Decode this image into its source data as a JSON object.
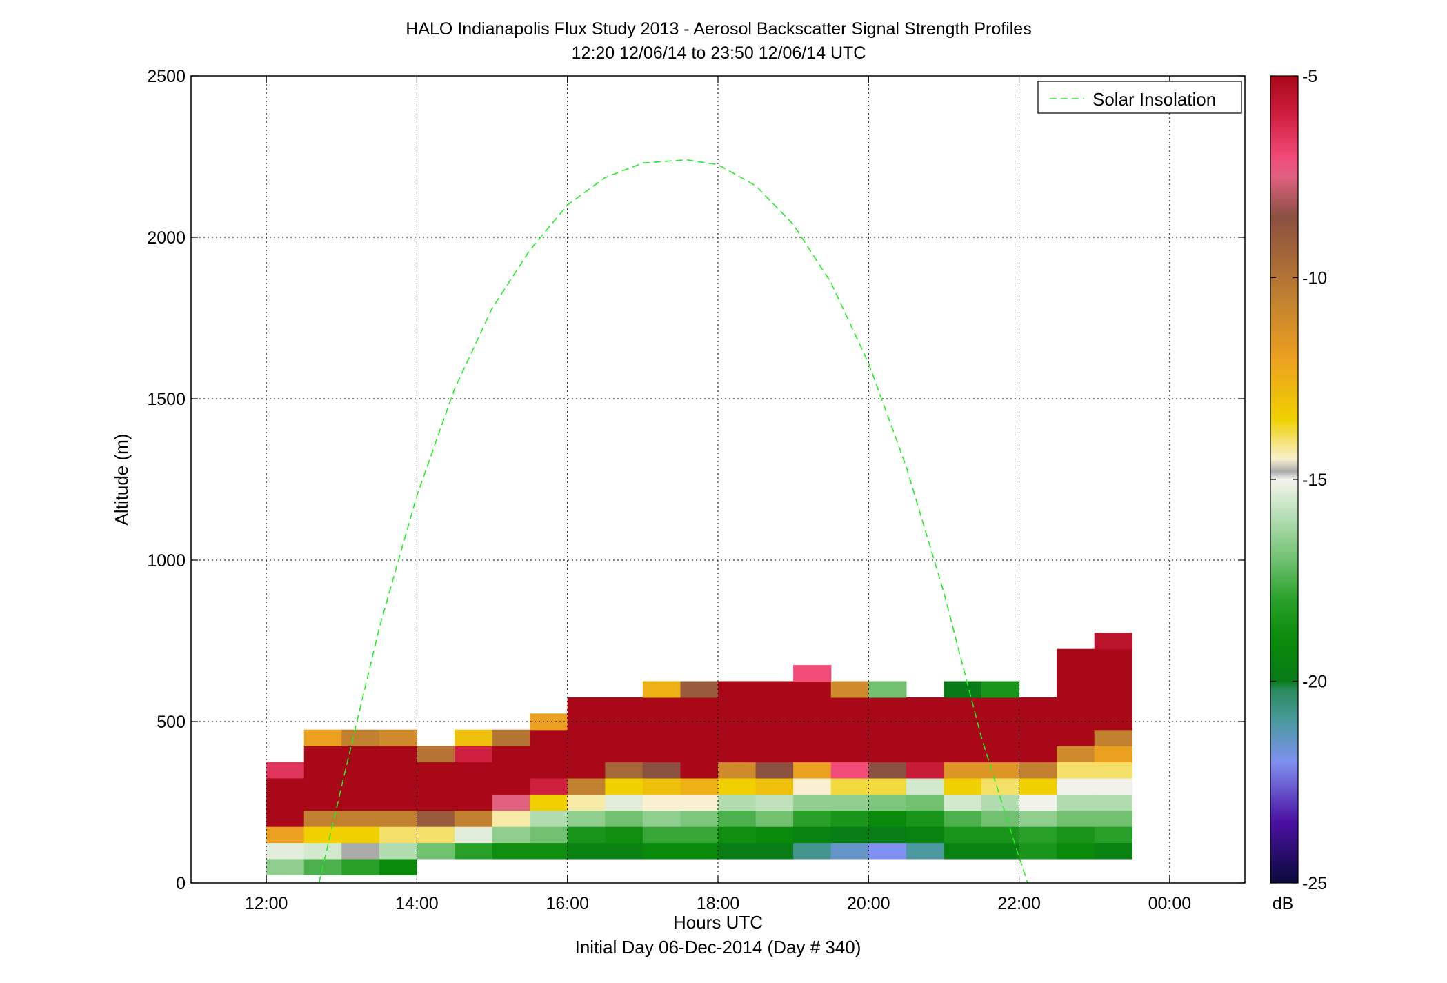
{
  "title": "HALO Indianapolis Flux Study 2013 - Aerosol Backscatter Signal Strength Profiles",
  "subtitle": "12:20 12/06/14 to 23:50 12/06/14  UTC",
  "chart_data": {
    "type": "heatmap",
    "title": "HALO Indianapolis Flux Study 2013 - Aerosol Backscatter Signal Strength Profiles",
    "subtitle": "12:20 12/06/14 to 23:50 12/06/14  UTC",
    "xlabel": "Hours UTC",
    "xlabel2": "Initial Day 06-Dec-2014 (Day # 340)",
    "ylabel": "Altitude (m)",
    "xlim": [
      11.0,
      25.0
    ],
    "ylim": [
      0,
      2500
    ],
    "x_ticks": [
      12,
      14,
      16,
      18,
      20,
      22,
      24
    ],
    "x_tick_labels": [
      "12:00",
      "14:00",
      "16:00",
      "18:00",
      "20:00",
      "22:00",
      "00:00"
    ],
    "y_ticks": [
      0,
      500,
      1000,
      1500,
      2000,
      2500
    ],
    "y_tick_labels": [
      "0",
      "500",
      "1000",
      "1500",
      "2000",
      "2500"
    ],
    "grid": true,
    "colorbar": {
      "label": "dB",
      "range": [
        -25,
        -5
      ],
      "tick_values": [
        -5,
        -10,
        -15,
        -20,
        -25
      ],
      "tick_labels": [
        "-5",
        "-10",
        "-15",
        "-20",
        "-25"
      ],
      "stops": [
        [
          -25,
          "#0a0a3c"
        ],
        [
          -23.5,
          "#4a10a0"
        ],
        [
          -22,
          "#8090f0"
        ],
        [
          -21,
          "#4a9aa0"
        ],
        [
          -20.2,
          "#2a8a5a"
        ],
        [
          -20,
          "#087a18"
        ],
        [
          -19,
          "#0a8a0a"
        ],
        [
          -18,
          "#28a028"
        ],
        [
          -17,
          "#70c070"
        ],
        [
          -16,
          "#b0dcb0"
        ],
        [
          -15.2,
          "#e8f0e0"
        ],
        [
          -15,
          "#f2f2ec"
        ],
        [
          -14.8,
          "#aaaaaa"
        ],
        [
          -14.5,
          "#f8f0d0"
        ],
        [
          -13.5,
          "#f0d000"
        ],
        [
          -12,
          "#eca020"
        ],
        [
          -10.5,
          "#c08030"
        ],
        [
          -8.5,
          "#8a5040"
        ],
        [
          -7.5,
          "#e06080"
        ],
        [
          -7,
          "#f04a78"
        ],
        [
          -6,
          "#d02040"
        ],
        [
          -5,
          "#a80818"
        ]
      ]
    },
    "solar_insolation": {
      "name": "Solar Insolation",
      "style": "dashed",
      "color": "#22ee22",
      "x": [
        12.7,
        13.0,
        13.5,
        14.0,
        14.5,
        15.0,
        15.5,
        16.0,
        16.5,
        17.0,
        17.58,
        18.0,
        18.5,
        19.0,
        19.5,
        20.0,
        20.5,
        21.0,
        21.5,
        22.0,
        22.2
      ],
      "y": [
        0,
        300,
        790,
        1200,
        1530,
        1780,
        1960,
        2100,
        2185,
        2230,
        2240,
        2225,
        2160,
        2040,
        1860,
        1610,
        1290,
        900,
        450,
        80,
        -60
      ]
    },
    "bin_width_hours": 0.5,
    "bin_height_m": 50,
    "columns": [
      {
        "x": 12.25,
        "cells": [
          [
            50,
            -16.5
          ],
          [
            100,
            -15.3
          ],
          [
            150,
            -12
          ],
          [
            200,
            -5
          ],
          [
            250,
            -5
          ],
          [
            300,
            -5
          ],
          [
            350,
            -6.5
          ]
        ]
      },
      {
        "x": 12.75,
        "cells": [
          [
            50,
            -17.5
          ],
          [
            100,
            -15.5
          ],
          [
            150,
            -13.5
          ],
          [
            200,
            -10.5
          ],
          [
            250,
            -5
          ],
          [
            300,
            -5
          ],
          [
            350,
            -5
          ],
          [
            400,
            -5
          ],
          [
            450,
            -12
          ]
        ]
      },
      {
        "x": 13.25,
        "cells": [
          [
            50,
            -18
          ],
          [
            100,
            -14.8
          ],
          [
            150,
            -13.5
          ],
          [
            200,
            -10.5
          ],
          [
            250,
            -5
          ],
          [
            300,
            -5
          ],
          [
            350,
            -5
          ],
          [
            400,
            -5
          ],
          [
            450,
            -10.5
          ]
        ]
      },
      {
        "x": 13.75,
        "cells": [
          [
            50,
            -19
          ],
          [
            100,
            -16
          ],
          [
            150,
            -14
          ],
          [
            200,
            -10.5
          ],
          [
            250,
            -5
          ],
          [
            300,
            -5
          ],
          [
            350,
            -5
          ],
          [
            400,
            -5
          ],
          [
            450,
            -11
          ]
        ]
      },
      {
        "x": 14.25,
        "cells": [
          [
            100,
            -17
          ],
          [
            150,
            -14
          ],
          [
            200,
            -9
          ],
          [
            250,
            -5
          ],
          [
            300,
            -5
          ],
          [
            350,
            -5
          ],
          [
            400,
            -10
          ]
        ]
      },
      {
        "x": 14.75,
        "cells": [
          [
            100,
            -18
          ],
          [
            150,
            -15.3
          ],
          [
            200,
            -10.5
          ],
          [
            250,
            -5
          ],
          [
            300,
            -5
          ],
          [
            350,
            -5
          ],
          [
            400,
            -6
          ],
          [
            450,
            -13
          ]
        ]
      },
      {
        "x": 15.25,
        "cells": [
          [
            100,
            -18.8
          ],
          [
            150,
            -16.5
          ],
          [
            200,
            -14.3
          ],
          [
            250,
            -7.5
          ],
          [
            300,
            -5
          ],
          [
            350,
            -5
          ],
          [
            400,
            -5
          ],
          [
            450,
            -10
          ]
        ]
      },
      {
        "x": 15.75,
        "cells": [
          [
            100,
            -18.8
          ],
          [
            150,
            -17
          ],
          [
            200,
            -16
          ],
          [
            250,
            -13.5
          ],
          [
            300,
            -6
          ],
          [
            350,
            -5
          ],
          [
            400,
            -5
          ],
          [
            450,
            -5
          ],
          [
            500,
            -12
          ]
        ]
      },
      {
        "x": 16.25,
        "cells": [
          [
            100,
            -19.5
          ],
          [
            150,
            -18.5
          ],
          [
            200,
            -16.5
          ],
          [
            250,
            -14.3
          ],
          [
            300,
            -10.5
          ],
          [
            350,
            -5
          ],
          [
            400,
            -5
          ],
          [
            450,
            -5
          ],
          [
            500,
            -5
          ],
          [
            550,
            -5
          ]
        ]
      },
      {
        "x": 16.75,
        "cells": [
          [
            100,
            -19.5
          ],
          [
            150,
            -18.8
          ],
          [
            200,
            -17
          ],
          [
            250,
            -15.3
          ],
          [
            300,
            -13.5
          ],
          [
            350,
            -9.5
          ],
          [
            400,
            -5
          ],
          [
            450,
            -5
          ],
          [
            500,
            -5
          ],
          [
            550,
            -5
          ]
        ]
      },
      {
        "x": 17.25,
        "cells": [
          [
            100,
            -19
          ],
          [
            150,
            -17.8
          ],
          [
            200,
            -16.5
          ],
          [
            250,
            -14.5
          ],
          [
            300,
            -13
          ],
          [
            350,
            -8.5
          ],
          [
            400,
            -5
          ],
          [
            450,
            -5
          ],
          [
            500,
            -5
          ],
          [
            550,
            -5
          ],
          [
            600,
            -12.5
          ]
        ]
      },
      {
        "x": 17.75,
        "cells": [
          [
            100,
            -19
          ],
          [
            150,
            -17.8
          ],
          [
            200,
            -16.8
          ],
          [
            250,
            -14.5
          ],
          [
            300,
            -12.5
          ],
          [
            350,
            -5
          ],
          [
            400,
            -5
          ],
          [
            450,
            -5
          ],
          [
            500,
            -5
          ],
          [
            550,
            -5
          ],
          [
            600,
            -9
          ]
        ]
      },
      {
        "x": 18.25,
        "cells": [
          [
            100,
            -19.8
          ],
          [
            150,
            -18.8
          ],
          [
            200,
            -17.5
          ],
          [
            250,
            -16
          ],
          [
            300,
            -13.5
          ],
          [
            350,
            -11
          ],
          [
            400,
            -5
          ],
          [
            450,
            -5
          ],
          [
            500,
            -5
          ],
          [
            550,
            -5
          ],
          [
            600,
            -5
          ]
        ]
      },
      {
        "x": 18.75,
        "cells": [
          [
            100,
            -19.8
          ],
          [
            150,
            -19
          ],
          [
            200,
            -17
          ],
          [
            250,
            -15.8
          ],
          [
            300,
            -13
          ],
          [
            350,
            -8.5
          ],
          [
            400,
            -5
          ],
          [
            450,
            -5
          ],
          [
            500,
            -5
          ],
          [
            550,
            -5
          ],
          [
            600,
            -5
          ]
        ]
      },
      {
        "x": 19.25,
        "cells": [
          [
            100,
            -20.8
          ],
          [
            150,
            -19.5
          ],
          [
            200,
            -18
          ],
          [
            250,
            -16.5
          ],
          [
            300,
            -14.5
          ],
          [
            350,
            -12
          ],
          [
            400,
            -5
          ],
          [
            450,
            -5
          ],
          [
            500,
            -5
          ],
          [
            550,
            -5
          ],
          [
            600,
            -5
          ],
          [
            650,
            -7
          ]
        ]
      },
      {
        "x": 19.75,
        "cells": [
          [
            100,
            -21.5
          ],
          [
            150,
            -19.8
          ],
          [
            200,
            -18.5
          ],
          [
            250,
            -16.5
          ],
          [
            300,
            -13.8
          ],
          [
            350,
            -7
          ],
          [
            400,
            -5
          ],
          [
            450,
            -5
          ],
          [
            500,
            -5
          ],
          [
            550,
            -5
          ],
          [
            600,
            -11
          ]
        ]
      },
      {
        "x": 20.25,
        "cells": [
          [
            100,
            -22
          ],
          [
            150,
            -19.9
          ],
          [
            200,
            -19
          ],
          [
            250,
            -16.8
          ],
          [
            300,
            -13.8
          ],
          [
            350,
            -8.5
          ],
          [
            400,
            -5
          ],
          [
            450,
            -5
          ],
          [
            500,
            -5
          ],
          [
            550,
            -5
          ],
          [
            600,
            -17
          ]
        ]
      },
      {
        "x": 20.75,
        "cells": [
          [
            100,
            -21
          ],
          [
            150,
            -19.5
          ],
          [
            200,
            -18.5
          ],
          [
            250,
            -17
          ],
          [
            300,
            -15.5
          ],
          [
            350,
            -5.8
          ],
          [
            400,
            -5
          ],
          [
            450,
            -5
          ],
          [
            500,
            -5
          ],
          [
            550,
            -5
          ]
        ]
      },
      {
        "x": 21.25,
        "cells": [
          [
            100,
            -19.5
          ],
          [
            150,
            -18.5
          ],
          [
            200,
            -17.5
          ],
          [
            250,
            -15.5
          ],
          [
            300,
            -13.5
          ],
          [
            350,
            -11.5
          ],
          [
            400,
            -5
          ],
          [
            450,
            -5
          ],
          [
            500,
            -5
          ],
          [
            550,
            -5
          ],
          [
            600,
            -20
          ]
        ]
      },
      {
        "x": 21.75,
        "cells": [
          [
            100,
            -19.5
          ],
          [
            150,
            -18.5
          ],
          [
            200,
            -17
          ],
          [
            250,
            -16
          ],
          [
            300,
            -14
          ],
          [
            350,
            -11.5
          ],
          [
            400,
            -5
          ],
          [
            450,
            -5
          ],
          [
            500,
            -5
          ],
          [
            550,
            -5
          ],
          [
            600,
            -18.5
          ]
        ]
      },
      {
        "x": 22.25,
        "cells": [
          [
            100,
            -18.5
          ],
          [
            150,
            -18
          ],
          [
            200,
            -16.5
          ],
          [
            250,
            -15
          ],
          [
            300,
            -13.5
          ],
          [
            350,
            -10.5
          ],
          [
            400,
            -5
          ],
          [
            450,
            -5
          ],
          [
            500,
            -5
          ],
          [
            550,
            -5
          ]
        ]
      },
      {
        "x": 22.75,
        "cells": [
          [
            100,
            -19
          ],
          [
            150,
            -18.5
          ],
          [
            200,
            -17
          ],
          [
            250,
            -16
          ],
          [
            300,
            -15
          ],
          [
            350,
            -14
          ],
          [
            400,
            -11
          ],
          [
            450,
            -5
          ],
          [
            500,
            -5
          ],
          [
            550,
            -5
          ],
          [
            600,
            -5
          ],
          [
            650,
            -5
          ],
          [
            700,
            -5
          ]
        ]
      },
      {
        "x": 23.25,
        "cells": [
          [
            100,
            -19.5
          ],
          [
            150,
            -18
          ],
          [
            200,
            -17
          ],
          [
            250,
            -16
          ],
          [
            300,
            -15
          ],
          [
            350,
            -14
          ],
          [
            400,
            -12
          ],
          [
            450,
            -10.5
          ],
          [
            500,
            -5
          ],
          [
            550,
            -5
          ],
          [
            600,
            -5
          ],
          [
            650,
            -5
          ],
          [
            700,
            -5
          ],
          [
            750,
            -5.5
          ]
        ]
      }
    ]
  }
}
